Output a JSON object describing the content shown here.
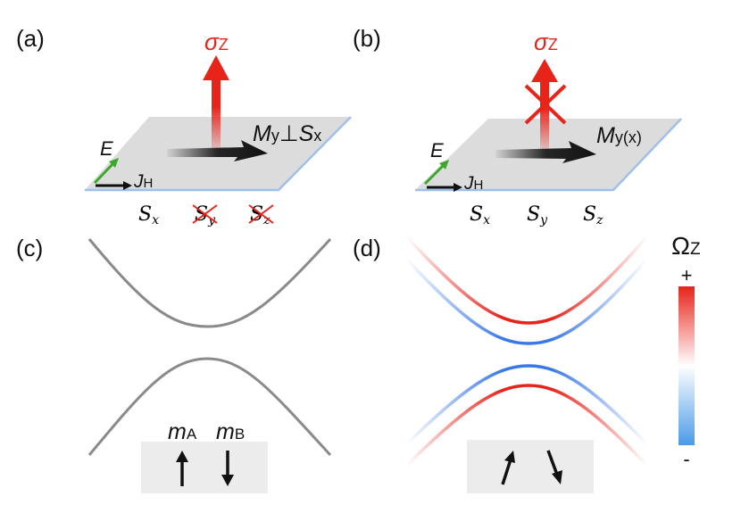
{
  "panels": {
    "a": {
      "label": "(a)",
      "sigma": "σ",
      "sigma_sub": "Z",
      "m_main": "M",
      "m_sub": "y",
      "perp": "⊥",
      "s_main": "S",
      "s_sub": "x",
      "e_label": "E",
      "j_main": "J",
      "j_sub": "H",
      "spins": [
        {
          "main": "S",
          "sub": "x",
          "crossed": false
        },
        {
          "main": "S",
          "sub": "y",
          "crossed": true
        },
        {
          "main": "S",
          "sub": "z",
          "crossed": true
        }
      ]
    },
    "b": {
      "label": "(b)",
      "sigma": "σ",
      "sigma_sub": "Z",
      "sigma_crossed": true,
      "m_main": "M",
      "m_sub": "y(x)",
      "e_label": "E",
      "j_main": "J",
      "j_sub": "H",
      "spins": [
        {
          "main": "S",
          "sub": "x",
          "crossed": false
        },
        {
          "main": "S",
          "sub": "y",
          "crossed": false
        },
        {
          "main": "S",
          "sub": "z",
          "crossed": false
        }
      ]
    },
    "c": {
      "label": "(c)",
      "mA_main": "m",
      "mA_sub": "A",
      "mB_main": "m",
      "mB_sub": "B"
    },
    "d": {
      "label": "(d)"
    }
  },
  "colorbar": {
    "title": "Ω",
    "title_sub": "Z",
    "max_label": "+",
    "min_label": "-"
  },
  "colors": {
    "red": "#e8231a",
    "blue": "#3a78e8",
    "band_gray": "#8a8a8a",
    "green": "#3aa82a",
    "plane": "#dcdcdc",
    "plane_edge": "#9fc0ea"
  }
}
